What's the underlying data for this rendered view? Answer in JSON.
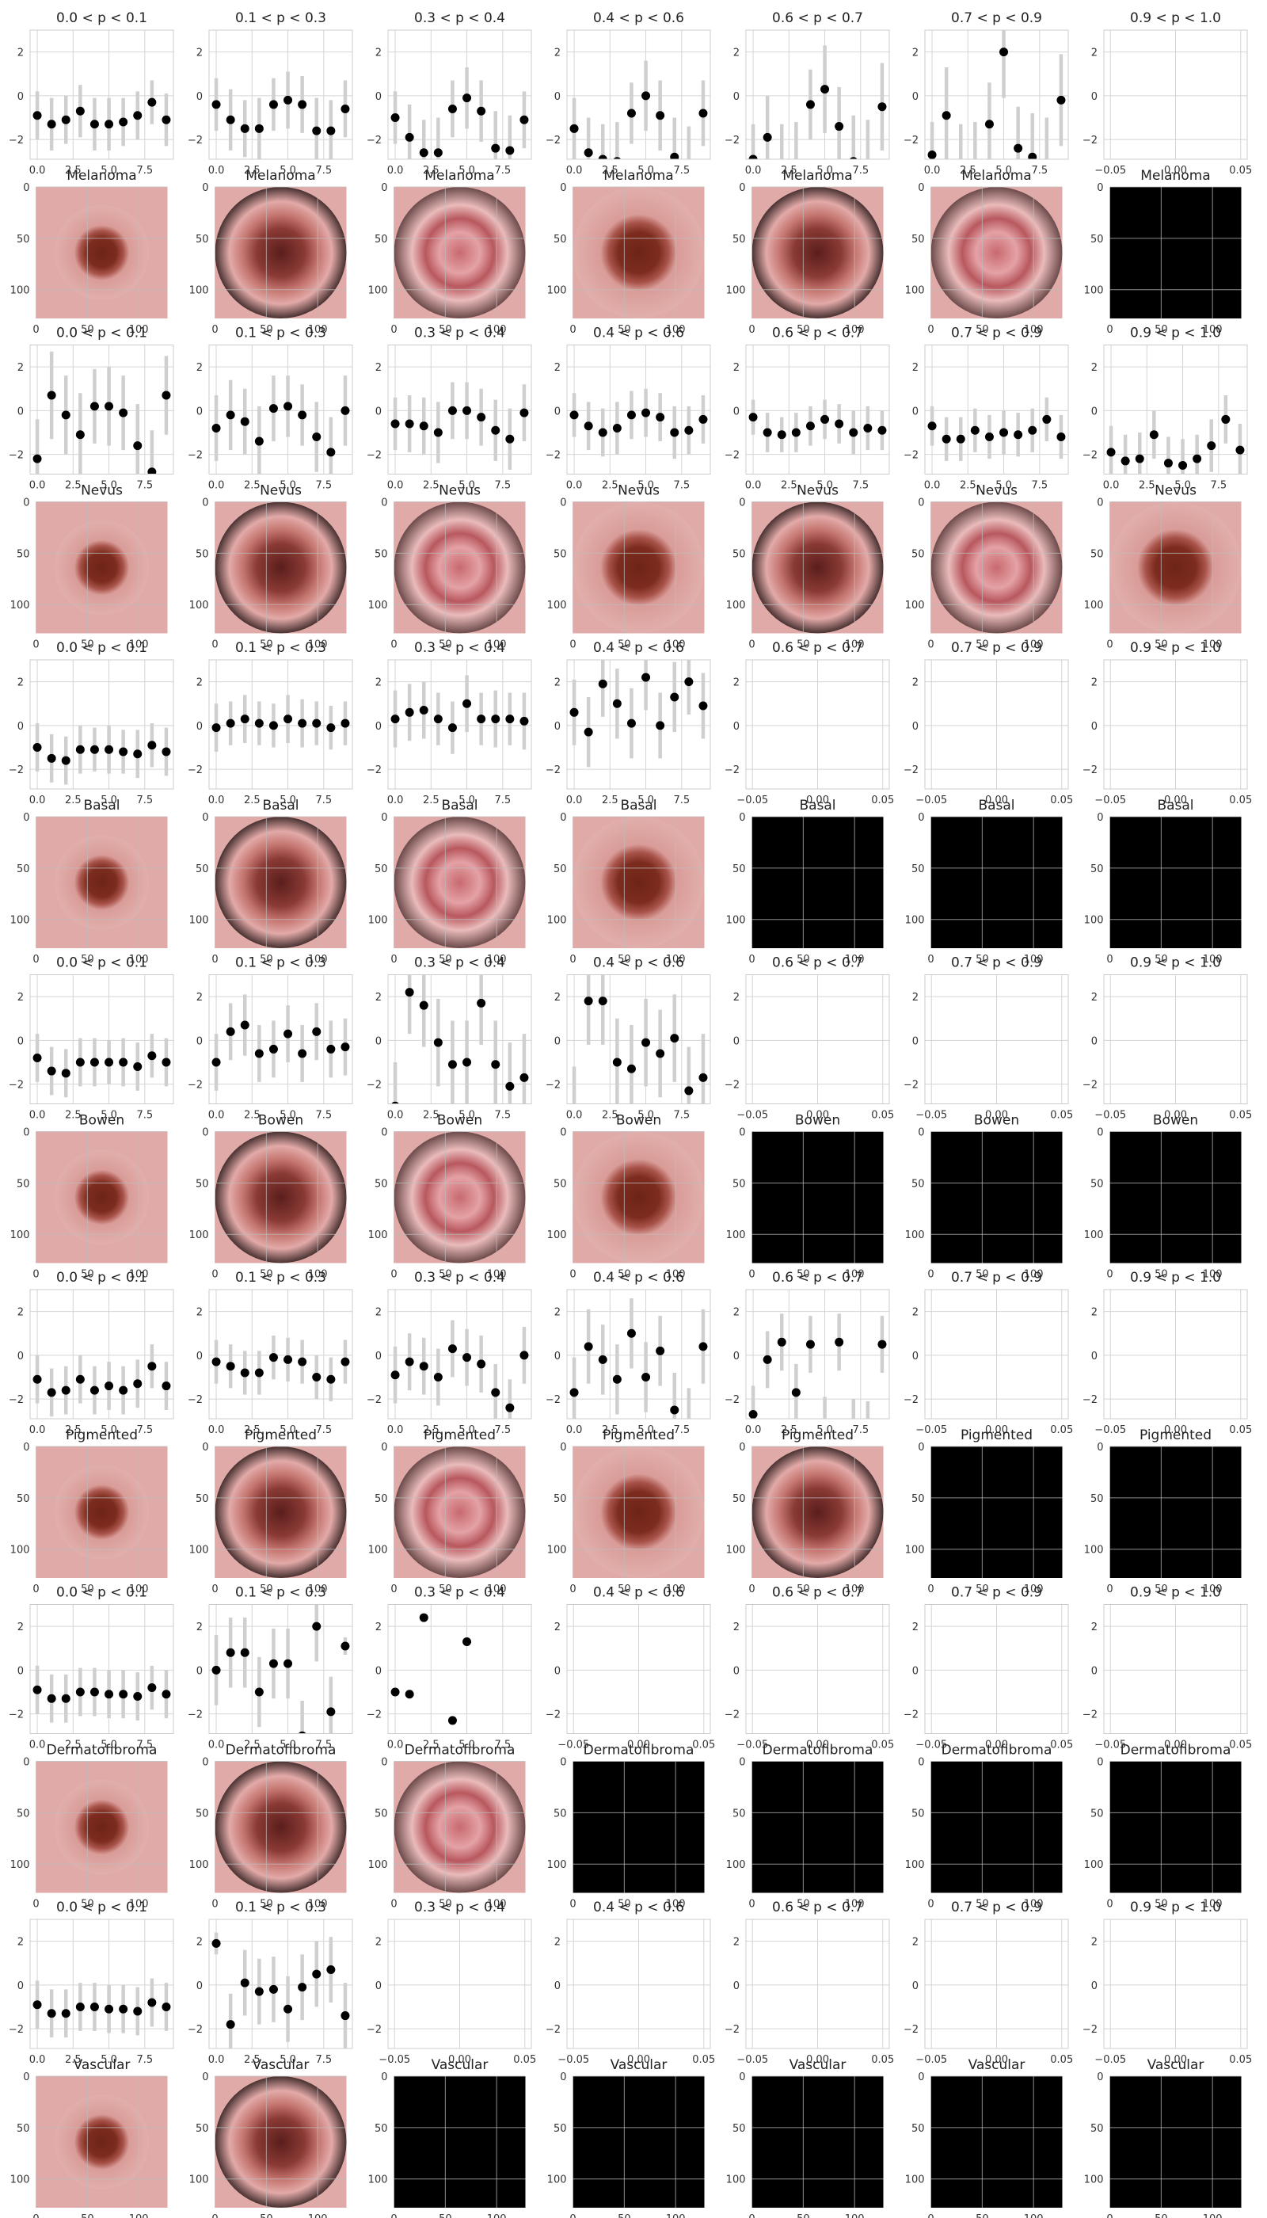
{
  "colors": {
    "background": "#ffffff",
    "grid": "#d4d4d4",
    "frame": "#cccccc",
    "errorbar": "#cfcfcf",
    "marker": "#000000",
    "skin": "#dfaaa7",
    "lesion": "#7a2a1e",
    "empty_image": "#000000"
  },
  "chart_data": {
    "type": "scatter",
    "bins": [
      "0.0 < p < 0.1",
      "0.1 < p < 0.3",
      "0.3 < p < 0.4",
      "0.4 < p < 0.6",
      "0.6 < p < 0.7",
      "0.7 < p < 0.9",
      "0.9 < p < 1.0"
    ],
    "scatter_axes": {
      "ylim": [
        -2.9,
        3.0
      ],
      "yticks": [
        "2",
        "0",
        "−2"
      ],
      "yvals": [
        2,
        0,
        -2
      ],
      "xlim_data": [
        -0.5,
        9.5
      ],
      "xticks_data": [
        "0.0",
        "2.5",
        "5.0",
        "7.5"
      ],
      "xvals_data": [
        0,
        2.5,
        5,
        7.5
      ],
      "xlim_empty": [
        -0.055,
        0.055
      ],
      "xticks_empty": [
        "−0.05",
        "0.00",
        "0.05"
      ],
      "xvals_empty": [
        -0.05,
        0,
        0.05
      ],
      "grid": true
    },
    "image_axes": {
      "xlim": [
        0,
        128
      ],
      "xticks": [
        "0",
        "50",
        "100"
      ],
      "xvals": [
        0,
        50,
        100
      ],
      "ylim": [
        128,
        0
      ],
      "yticks": [
        "0",
        "50",
        "100"
      ],
      "yvals": [
        0,
        50,
        100
      ],
      "grid": true
    },
    "classes": [
      {
        "name": "Melanoma",
        "bins": [
          {
            "y": [
              -0.9,
              -1.3,
              -1.1,
              -0.7,
              -1.3,
              -1.3,
              -1.2,
              -0.9,
              -0.3,
              -1.1
            ],
            "err": [
              1.1,
              1.2,
              1.1,
              1.2,
              1.2,
              1.2,
              1.1,
              1.1,
              1.0,
              1.2
            ]
          },
          {
            "y": [
              -0.4,
              -1.1,
              -1.5,
              -1.5,
              -0.4,
              -0.2,
              -0.4,
              -1.6,
              -1.6,
              -0.6
            ],
            "err": [
              1.2,
              1.4,
              1.3,
              1.4,
              1.2,
              1.3,
              1.3,
              1.5,
              1.4,
              1.3
            ]
          },
          {
            "y": [
              -1.0,
              -1.9,
              -2.6,
              -2.6,
              -0.6,
              -0.1,
              -0.7,
              -2.4,
              -2.5,
              -1.1
            ],
            "err": [
              1.2,
              1.5,
              1.5,
              1.6,
              1.3,
              1.4,
              1.4,
              1.7,
              1.6,
              1.3
            ]
          },
          {
            "y": [
              -1.5,
              -2.6,
              -2.9,
              -3.0,
              -0.8,
              0.0,
              -0.9,
              -2.8,
              -3.1,
              -0.8
            ],
            "err": [
              1.4,
              1.6,
              1.6,
              1.8,
              1.4,
              1.6,
              1.6,
              1.8,
              1.7,
              1.5
            ]
          },
          {
            "y": [
              -2.9,
              -1.9,
              -3.1,
              -3.1,
              -0.4,
              0.3,
              -1.4,
              -3.0,
              -3.2,
              -0.5
            ],
            "err": [
              1.6,
              1.9,
              1.8,
              1.9,
              1.6,
              2.0,
              1.8,
              2.1,
              2.1,
              2.0
            ]
          },
          {
            "y": [
              -2.7,
              -0.9,
              -3.2,
              -3.2,
              -1.3,
              2.0,
              -2.4,
              -2.8,
              -3.3,
              -0.2
            ],
            "err": [
              1.5,
              2.2,
              1.9,
              2.0,
              1.9,
              2.1,
              1.9,
              2.0,
              2.3,
              2.1
            ]
          },
          null
        ]
      },
      {
        "name": "Nevus",
        "bins": [
          {
            "y": [
              -2.2,
              0.7,
              -0.2,
              -1.1,
              0.2,
              0.2,
              -0.1,
              -1.6,
              -2.8,
              0.7
            ],
            "err": [
              1.8,
              2.0,
              1.8,
              1.9,
              1.7,
              1.8,
              1.7,
              1.9,
              1.9,
              1.8
            ]
          },
          {
            "y": [
              -0.8,
              -0.2,
              -0.5,
              -1.4,
              0.1,
              0.2,
              -0.2,
              -1.2,
              -1.9,
              0.0
            ],
            "err": [
              1.5,
              1.6,
              1.5,
              1.6,
              1.5,
              1.4,
              1.4,
              1.6,
              1.6,
              1.6
            ]
          },
          {
            "y": [
              -0.6,
              -0.6,
              -0.7,
              -1.0,
              0.0,
              0.0,
              -0.3,
              -0.9,
              -1.3,
              -0.1
            ],
            "err": [
              1.2,
              1.3,
              1.3,
              1.4,
              1.3,
              1.3,
              1.3,
              1.4,
              1.4,
              1.3
            ]
          },
          {
            "y": [
              -0.2,
              -0.7,
              -1.0,
              -0.8,
              -0.2,
              -0.1,
              -0.3,
              -1.0,
              -0.9,
              -0.4
            ],
            "err": [
              1.0,
              1.1,
              1.1,
              1.2,
              1.1,
              1.1,
              1.1,
              1.2,
              1.1,
              1.1
            ]
          },
          {
            "y": [
              -0.3,
              -1.0,
              -1.1,
              -1.0,
              -0.7,
              -0.4,
              -0.6,
              -1.0,
              -0.8,
              -0.9
            ],
            "err": [
              0.8,
              0.9,
              0.8,
              0.9,
              0.9,
              0.9,
              0.9,
              1.0,
              1.0,
              0.9
            ]
          },
          {
            "y": [
              -0.7,
              -1.3,
              -1.3,
              -0.9,
              -1.2,
              -1.0,
              -1.1,
              -0.9,
              -0.4,
              -1.2
            ],
            "err": [
              0.9,
              1.0,
              1.0,
              1.0,
              1.0,
              1.0,
              1.0,
              1.0,
              1.0,
              1.0
            ]
          },
          {
            "y": [
              -1.9,
              -2.3,
              -2.2,
              -1.1,
              -2.4,
              -2.5,
              -2.2,
              -1.6,
              -0.4,
              -1.8
            ],
            "err": [
              1.2,
              1.2,
              1.2,
              1.1,
              1.2,
              1.2,
              1.1,
              1.2,
              1.1,
              1.2
            ]
          }
        ]
      },
      {
        "name": "Basal",
        "bins": [
          {
            "y": [
              -1.0,
              -1.5,
              -1.6,
              -1.1,
              -1.1,
              -1.1,
              -1.2,
              -1.3,
              -0.9,
              -1.2
            ],
            "err": [
              1.1,
              1.1,
              1.1,
              1.1,
              1.0,
              1.1,
              1.0,
              1.1,
              1.0,
              1.1
            ]
          },
          {
            "y": [
              -0.1,
              0.1,
              0.3,
              0.1,
              0.0,
              0.3,
              0.1,
              0.1,
              -0.1,
              0.1
            ],
            "err": [
              1.1,
              1.0,
              1.1,
              1.0,
              1.0,
              1.1,
              1.1,
              1.0,
              1.0,
              1.0
            ]
          },
          {
            "y": [
              0.3,
              0.6,
              0.7,
              0.3,
              -0.1,
              1.0,
              0.3,
              0.3,
              0.3,
              0.2
            ],
            "err": [
              1.3,
              1.3,
              1.3,
              1.2,
              1.2,
              1.3,
              1.2,
              1.3,
              1.2,
              1.3
            ]
          },
          {
            "y": [
              0.6,
              -0.3,
              1.9,
              1.0,
              0.1,
              2.2,
              0.0,
              1.3,
              2.0,
              0.9
            ],
            "err": [
              1.5,
              1.6,
              1.5,
              1.6,
              1.6,
              1.5,
              1.5,
              1.6,
              1.5,
              1.5
            ]
          },
          null,
          null,
          null
        ]
      },
      {
        "name": "Bowen",
        "bins": [
          {
            "y": [
              -0.8,
              -1.4,
              -1.5,
              -1.0,
              -1.0,
              -1.0,
              -1.0,
              -1.2,
              -0.7,
              -1.0
            ],
            "err": [
              1.1,
              1.1,
              1.1,
              1.1,
              1.1,
              1.0,
              1.1,
              1.1,
              1.0,
              1.1
            ]
          },
          {
            "y": [
              -1.0,
              0.4,
              0.7,
              -0.6,
              -0.4,
              0.3,
              -0.6,
              0.4,
              -0.4,
              -0.3
            ],
            "err": [
              1.3,
              1.3,
              1.4,
              1.3,
              1.3,
              1.3,
              1.3,
              1.3,
              1.3,
              1.3
            ]
          },
          {
            "y": [
              -3.0,
              2.2,
              1.6,
              -0.1,
              -1.1,
              -1.0,
              1.7,
              -1.1,
              -2.1,
              -1.7
            ],
            "err": [
              2.0,
              1.9,
              1.9,
              2.0,
              2.0,
              1.9,
              1.9,
              2.0,
              2.0,
              2.0
            ]
          },
          {
            "y": [
              -3.4,
              1.8,
              1.8,
              -1.0,
              -1.3,
              -0.1,
              -0.6,
              0.1,
              -2.3,
              -1.7
            ],
            "err": [
              2.2,
              2.0,
              2.0,
              2.0,
              2.0,
              2.0,
              2.0,
              2.0,
              2.0,
              2.0
            ]
          },
          null,
          null,
          null
        ]
      },
      {
        "name": "Pigmented",
        "bins": [
          {
            "y": [
              -1.1,
              -1.7,
              -1.6,
              -1.1,
              -1.6,
              -1.4,
              -1.6,
              -1.3,
              -0.5,
              -1.4
            ],
            "err": [
              1.1,
              1.1,
              1.1,
              1.1,
              1.1,
              1.1,
              1.1,
              1.1,
              1.0,
              1.1
            ]
          },
          {
            "y": [
              -0.3,
              -0.5,
              -0.8,
              -0.8,
              -0.1,
              -0.2,
              -0.3,
              -1.0,
              -1.1,
              -0.3
            ],
            "err": [
              1.0,
              1.0,
              1.0,
              1.0,
              1.0,
              1.0,
              1.0,
              1.0,
              1.0,
              1.0
            ]
          },
          {
            "y": [
              -0.9,
              -0.3,
              -0.5,
              -1.0,
              0.3,
              -0.1,
              -0.4,
              -1.7,
              -2.4,
              0.0
            ],
            "err": [
              1.3,
              1.3,
              1.3,
              1.3,
              1.3,
              1.3,
              1.3,
              1.3,
              1.3,
              1.3
            ]
          },
          {
            "y": [
              -1.7,
              0.4,
              -0.2,
              -1.1,
              1.0,
              -1.0,
              0.2,
              -2.5,
              -3.2,
              0.4
            ],
            "err": [
              1.6,
              1.7,
              1.6,
              1.6,
              1.6,
              1.6,
              1.6,
              1.7,
              1.7,
              1.7
            ]
          },
          {
            "y": [
              -2.7,
              -0.2,
              0.6,
              -1.7,
              0.5,
              -3.2,
              0.6,
              -3.3,
              -3.4,
              0.5
            ],
            "err": [
              1.3,
              1.3,
              1.3,
              1.3,
              1.3,
              1.3,
              1.3,
              1.3,
              1.3,
              1.3
            ]
          },
          null,
          null
        ]
      },
      {
        "name": "Dermatofibroma",
        "bins": [
          {
            "y": [
              -0.9,
              -1.3,
              -1.3,
              -1.0,
              -1.0,
              -1.1,
              -1.1,
              -1.2,
              -0.8,
              -1.1
            ],
            "err": [
              1.1,
              1.1,
              1.1,
              1.1,
              1.1,
              1.1,
              1.1,
              1.1,
              1.0,
              1.1
            ]
          },
          {
            "y": [
              0.0,
              0.8,
              0.8,
              -1.0,
              0.3,
              0.3,
              -3.0,
              2.0,
              -1.9,
              1.1
            ],
            "err": [
              1.6,
              1.6,
              1.6,
              1.6,
              1.6,
              1.6,
              1.6,
              1.6,
              1.6,
              0.4
            ]
          },
          {
            "y": [
              -1.0,
              -1.1,
              2.4,
              -3.2,
              -2.3,
              1.3
            ],
            "err": [
              0,
              0,
              0,
              0,
              0,
              0
            ]
          },
          null,
          null,
          null,
          null
        ]
      },
      {
        "name": "Vascular",
        "bins": [
          {
            "y": [
              -0.9,
              -1.3,
              -1.3,
              -1.0,
              -1.0,
              -1.1,
              -1.1,
              -1.2,
              -0.8,
              -1.0
            ],
            "err": [
              1.1,
              1.1,
              1.1,
              1.1,
              1.1,
              1.1,
              1.1,
              1.1,
              1.1,
              1.1
            ]
          },
          {
            "y": [
              1.9,
              -1.8,
              0.1,
              -0.3,
              -0.2,
              -1.1,
              -0.1,
              0.5,
              0.7,
              -1.4
            ],
            "err": [
              0.5,
              1.4,
              1.5,
              1.5,
              1.5,
              1.5,
              1.5,
              1.5,
              1.5,
              1.5
            ]
          },
          null,
          null,
          null,
          null,
          null
        ]
      }
    ]
  }
}
